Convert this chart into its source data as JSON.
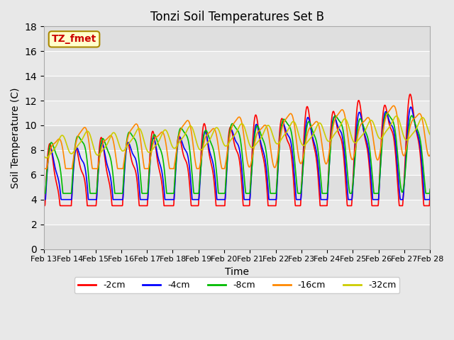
{
  "title": "Tonzi Soil Temperatures Set B",
  "xlabel": "Time",
  "ylabel": "Soil Temperature (C)",
  "ylim": [
    0,
    18
  ],
  "xlim": [
    0,
    15
  ],
  "annotation_text": "TZ_fmet",
  "annotation_box_color": "#ffffcc",
  "annotation_text_color": "#cc0000",
  "background_color": "#e8e8e8",
  "plot_bg_color": "#e8e8e8",
  "grid_color": "white",
  "series_colors": {
    "-2cm": "#ff0000",
    "-4cm": "#0000ff",
    "-8cm": "#00bb00",
    "-16cm": "#ff8800",
    "-32cm": "#cccc00"
  },
  "xtick_labels": [
    "Feb 13",
    "Feb 14",
    "Feb 15",
    "Feb 16",
    "Feb 17",
    "Feb 18",
    "Feb 19",
    "Feb 20",
    "Feb 21",
    "Feb 22",
    "Feb 23",
    "Feb 24",
    "Feb 25",
    "Feb 26",
    "Feb 27",
    "Feb 28"
  ],
  "legend_labels": [
    "-2cm",
    "-4cm",
    "-8cm",
    "-16cm",
    "-32cm"
  ]
}
